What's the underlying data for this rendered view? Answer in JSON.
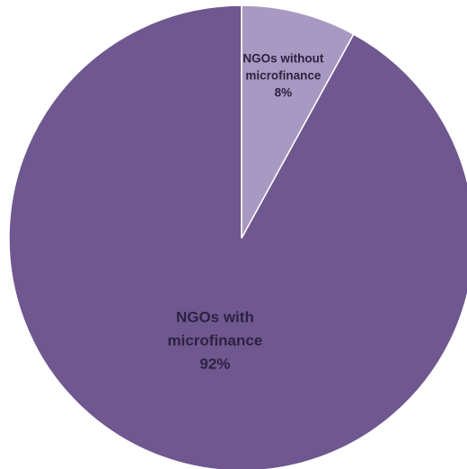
{
  "chart_data": {
    "type": "pie",
    "start_angle_deg": 0,
    "direction": "counterclockwise",
    "slices": [
      {
        "category": "NGOs with microfinance",
        "value": 92,
        "label_lines": [
          "NGOs with",
          "microfinance",
          "92%"
        ],
        "color": "#6f5790"
      },
      {
        "category": "NGOs without microfinance",
        "value": 8,
        "label_lines": [
          "NGOs without",
          "microfinance",
          "8%"
        ],
        "color": "#a899c2"
      }
    ]
  }
}
